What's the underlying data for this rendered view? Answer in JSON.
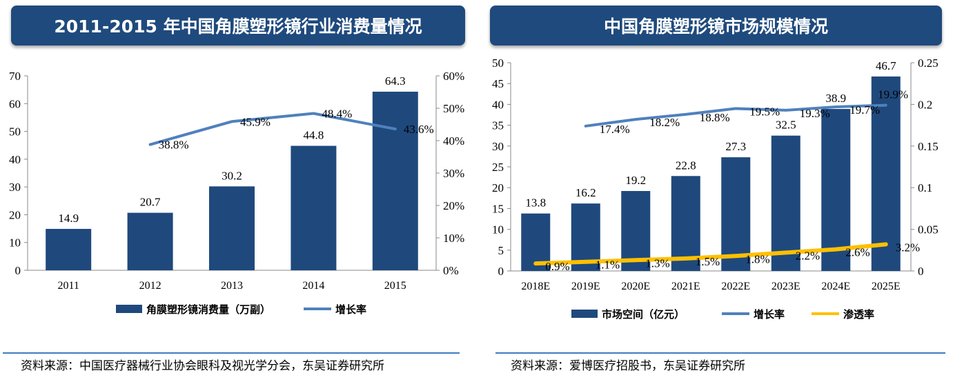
{
  "left_title": "2011-2015 年中国角膜塑形镜行业消费量情况",
  "right_title": "中国角膜塑形镜市场规模情况",
  "left_source": "资料来源：中国医疗器械行业协会眼科及视光学分会，东吴证券研究所",
  "right_source": "资料来源：爱博医疗招股书，东吴证券研究所",
  "colors": {
    "bar": "#1f497d",
    "growth": "#4f81bd",
    "penetration": "#ffc000",
    "banner": "#1f4a7d"
  },
  "chart_data": [
    {
      "type": "bar",
      "categories": [
        "2011",
        "2012",
        "2013",
        "2014",
        "2015"
      ],
      "series": [
        {
          "name": "角膜塑形镜消费量（万副）",
          "type": "bar",
          "axis": "left",
          "values": [
            14.9,
            20.7,
            30.2,
            44.8,
            64.3
          ],
          "labels": [
            "14.9",
            "20.7",
            "30.2",
            "44.8",
            "64.3"
          ]
        },
        {
          "name": "增长率",
          "type": "line",
          "axis": "right",
          "values": [
            null,
            0.388,
            0.459,
            0.484,
            0.436
          ],
          "labels": [
            "",
            "38.8%",
            "45.9%",
            "48.4%",
            "43.6%"
          ]
        }
      ],
      "ylim_left": [
        0,
        70
      ],
      "yticks_left": [
        "0",
        "10",
        "20",
        "30",
        "40",
        "50",
        "60",
        "70"
      ],
      "ylim_right": [
        0,
        0.6
      ],
      "yticks_right": [
        "0%",
        "10%",
        "20%",
        "30%",
        "40%",
        "50%",
        "60%"
      ],
      "legend": "bottom",
      "grid": false
    },
    {
      "type": "bar",
      "categories": [
        "2018E",
        "2019E",
        "2020E",
        "2021E",
        "2022E",
        "2023E",
        "2024E",
        "2025E"
      ],
      "series": [
        {
          "name": "市场空间（亿元）",
          "type": "bar",
          "axis": "left",
          "values": [
            13.8,
            16.2,
            19.2,
            22.8,
            27.3,
            32.5,
            38.9,
            46.7
          ],
          "labels": [
            "13.8",
            "16.2",
            "19.2",
            "22.8",
            "27.3",
            "32.5",
            "38.9",
            "46.7"
          ]
        },
        {
          "name": "增长率",
          "type": "line",
          "axis": "right",
          "values": [
            null,
            0.174,
            0.182,
            0.188,
            0.195,
            0.193,
            0.197,
            0.199
          ],
          "labels": [
            "",
            "17.4%",
            "18.2%",
            "18.8%",
            "19.5%",
            "19.3%",
            "19.7%",
            "19.9%"
          ]
        },
        {
          "name": "渗透率",
          "type": "line",
          "axis": "right",
          "values": [
            0.009,
            0.011,
            0.013,
            0.015,
            0.018,
            0.022,
            0.026,
            0.032
          ],
          "labels": [
            "0.9%",
            "1.1%",
            "1.3%",
            "1.5%",
            "1.8%",
            "2.2%",
            "2.6%",
            "3.2%"
          ]
        }
      ],
      "ylim_left": [
        0,
        50
      ],
      "yticks_left": [
        "0",
        "5",
        "10",
        "15",
        "20",
        "25",
        "30",
        "35",
        "40",
        "45",
        "50"
      ],
      "ylim_right": [
        0,
        0.25
      ],
      "yticks_right": [
        "0",
        "0.05",
        "0.1",
        "0.15",
        "0.2",
        "0.25"
      ],
      "legend": "bottom",
      "grid": false
    }
  ]
}
